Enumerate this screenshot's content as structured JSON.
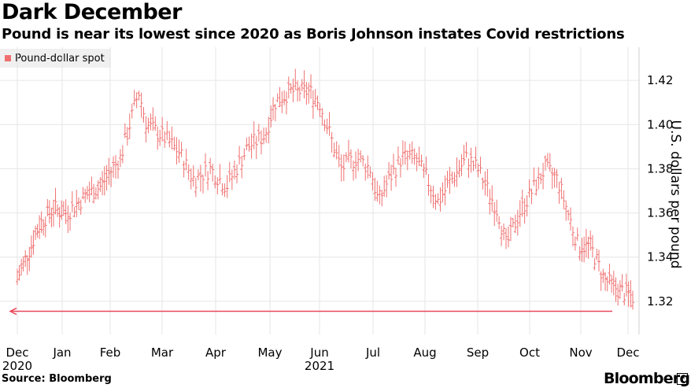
{
  "title": "Dark December",
  "subtitle": "Pound is near its lowest since 2020 as Boris Johnson instates Covid restrictions",
  "source": "Source: Bloomberg",
  "brand": "Bloomberg",
  "brand_icon": "external-link-icon",
  "colors": {
    "series": "#f07070",
    "arrow": "#e8485a",
    "grid": "#e6e6e6",
    "legend_bg": "#f0f0f0"
  },
  "chart_data": {
    "type": "ohlc-bar",
    "title": "Dark December",
    "ylabel": "U.S. dollars per pound",
    "xlabel": "",
    "ylim": [
      1.305,
      1.435
    ],
    "yticks": [
      1.32,
      1.34,
      1.36,
      1.38,
      1.4,
      1.42
    ],
    "ytick_labels": [
      "1.32",
      "1.34",
      "1.36",
      "1.38",
      "1.40",
      "1.42"
    ],
    "x_tick_labels": [
      "Dec",
      "Jan",
      "Feb",
      "Mar",
      "Apr",
      "May",
      "Jun",
      "Jul",
      "Aug",
      "Sep",
      "Oct",
      "Nov",
      "Dec"
    ],
    "x_year_labels": [
      {
        "month": "Dec",
        "year": "2020"
      },
      {
        "month": "Jun",
        "year": "2021"
      }
    ],
    "legend": [
      "Pound-dollar spot"
    ],
    "annotation": "arrow pointing left at 1.3155 from current level back to Dec 2020",
    "arrow_level": 1.3155,
    "series": [
      {
        "name": "Pound-dollar spot",
        "anchors_month_value": [
          [
            0,
            1.33
          ],
          [
            0.3,
            1.345
          ],
          [
            0.5,
            1.355
          ],
          [
            0.8,
            1.362
          ],
          [
            1.1,
            1.36
          ],
          [
            1.5,
            1.368
          ],
          [
            1.8,
            1.372
          ],
          [
            2.2,
            1.385
          ],
          [
            2.55,
            1.415
          ],
          [
            2.7,
            1.4
          ],
          [
            3.0,
            1.395
          ],
          [
            3.3,
            1.388
          ],
          [
            3.6,
            1.375
          ],
          [
            3.9,
            1.38
          ],
          [
            4.2,
            1.372
          ],
          [
            4.6,
            1.39
          ],
          [
            4.9,
            1.395
          ],
          [
            5.1,
            1.41
          ],
          [
            5.4,
            1.415
          ],
          [
            5.8,
            1.415
          ],
          [
            6.0,
            1.41
          ],
          [
            6.2,
            1.395
          ],
          [
            6.4,
            1.38
          ],
          [
            6.7,
            1.385
          ],
          [
            6.95,
            1.38
          ],
          [
            7.1,
            1.365
          ],
          [
            7.3,
            1.375
          ],
          [
            7.55,
            1.385
          ],
          [
            7.8,
            1.385
          ],
          [
            8.05,
            1.375
          ],
          [
            8.25,
            1.365
          ],
          [
            8.5,
            1.375
          ],
          [
            8.8,
            1.385
          ],
          [
            9.0,
            1.38
          ],
          [
            9.2,
            1.37
          ],
          [
            9.4,
            1.36
          ],
          [
            9.55,
            1.345
          ],
          [
            9.8,
            1.36
          ],
          [
            10.05,
            1.37
          ],
          [
            10.3,
            1.38
          ],
          [
            10.55,
            1.375
          ],
          [
            10.75,
            1.36
          ],
          [
            10.95,
            1.345
          ],
          [
            11.2,
            1.345
          ],
          [
            11.5,
            1.33
          ],
          [
            11.8,
            1.325
          ],
          [
            12.0,
            1.323
          ],
          [
            12.1,
            1.322
          ]
        ]
      }
    ]
  }
}
